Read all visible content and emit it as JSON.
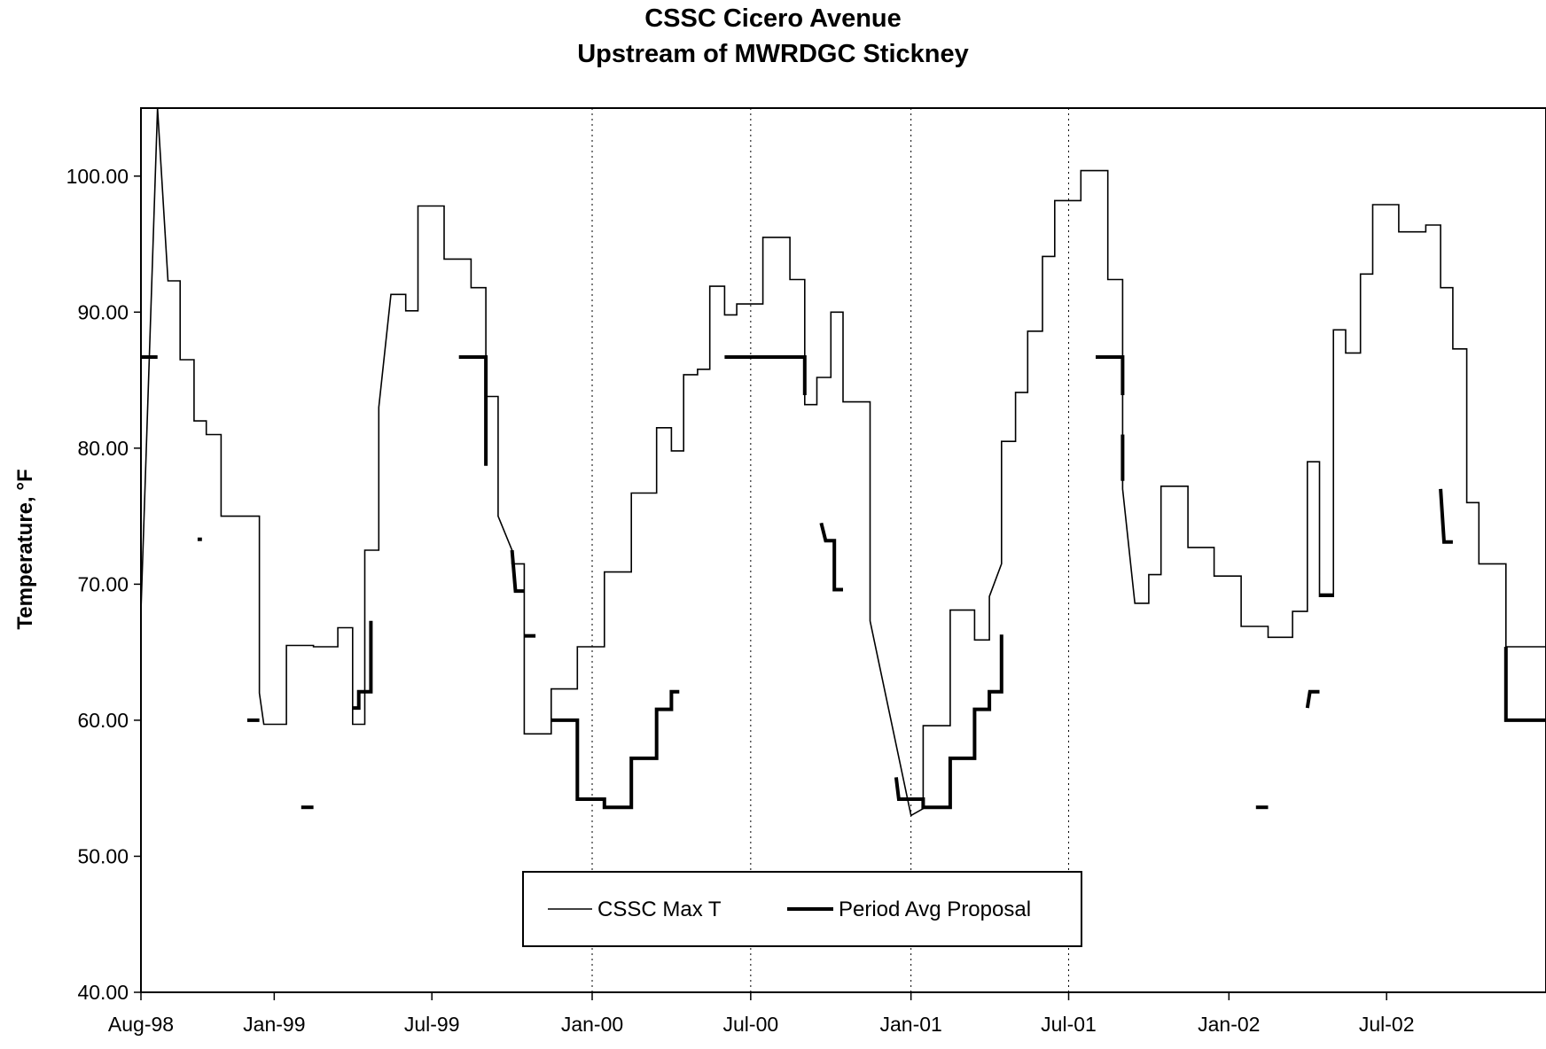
{
  "chart_data": {
    "type": "line",
    "title": "CSSC Cicero Avenue",
    "subtitle": "Upstream of MWRDGC Stickney",
    "xlabel": "",
    "ylabel": "Temperature, °F",
    "ylim": [
      40,
      105
    ],
    "yticks": [
      "40.00",
      "50.00",
      "60.00",
      "70.00",
      "80.00",
      "90.00",
      "100.00"
    ],
    "xlim": [
      "1998-08-01",
      "2002-12-31"
    ],
    "xticks": [
      "Aug-98",
      "Jan-99",
      "Jul-99",
      "Jan-00",
      "Jul-00",
      "Jan-01",
      "Jul-01",
      "Jan-02",
      "Jul-02"
    ],
    "xtick_dates": [
      "1998-08-01",
      "1999-01-01",
      "1999-07-01",
      "2000-01-01",
      "2000-07-01",
      "2001-01-01",
      "2001-07-01",
      "2002-01-01",
      "2002-07-01"
    ],
    "reference_lines": [
      "2000-01-01",
      "2000-07-01",
      "2001-01-01",
      "2001-07-01"
    ],
    "grid": false,
    "legend_position": "bottom-center",
    "series": [
      {
        "name": "CSSC Max T",
        "style": "thin",
        "points": [
          [
            "1998-08-01",
            68
          ],
          [
            "1998-08-20",
            105
          ],
          [
            "1998-09-01",
            92.3
          ],
          [
            "1998-09-15",
            92.3
          ],
          [
            "1998-09-15",
            86.5
          ],
          [
            "1998-10-01",
            86.5
          ],
          [
            "1998-10-01",
            82
          ],
          [
            "1998-10-15",
            82
          ],
          [
            "1998-10-15",
            81
          ],
          [
            "1998-11-01",
            81
          ],
          [
            "1998-11-01",
            75
          ],
          [
            "1998-12-15",
            75
          ],
          [
            "1998-12-15",
            62
          ],
          [
            "1998-12-20",
            59.7
          ],
          [
            "1999-01-15",
            59.7
          ],
          [
            "1999-01-15",
            65.5
          ],
          [
            "1999-02-15",
            65.5
          ],
          [
            "1999-02-15",
            65.4
          ],
          [
            "1999-03-15",
            65.4
          ],
          [
            "1999-03-15",
            66.8
          ],
          [
            "1999-04-01",
            66.8
          ],
          [
            "1999-04-01",
            59.7
          ],
          [
            "1999-04-15",
            59.7
          ],
          [
            "1999-04-15",
            72.5
          ],
          [
            "1999-05-01",
            72.5
          ],
          [
            "1999-05-01",
            83
          ],
          [
            "1999-05-15",
            91.3
          ],
          [
            "1999-06-01",
            91.3
          ],
          [
            "1999-06-01",
            90.1
          ],
          [
            "1999-06-15",
            90.1
          ],
          [
            "1999-06-15",
            97.8
          ],
          [
            "1999-07-15",
            97.8
          ],
          [
            "1999-07-15",
            93.9
          ],
          [
            "1999-08-15",
            93.9
          ],
          [
            "1999-08-15",
            91.8
          ],
          [
            "1999-09-01",
            91.8
          ],
          [
            "1999-09-01",
            83.8
          ],
          [
            "1999-09-15",
            83.8
          ],
          [
            "1999-09-15",
            75
          ],
          [
            "1999-10-01",
            72.5
          ],
          [
            "1999-10-01",
            71.5
          ],
          [
            "1999-10-15",
            71.5
          ],
          [
            "1999-10-15",
            59
          ],
          [
            "1999-11-15",
            59
          ],
          [
            "1999-11-15",
            62.3
          ],
          [
            "1999-12-15",
            62.3
          ],
          [
            "1999-12-15",
            65.4
          ],
          [
            "2000-01-15",
            65.4
          ],
          [
            "2000-01-15",
            70.9
          ],
          [
            "2000-02-15",
            70.9
          ],
          [
            "2000-02-15",
            76.7
          ],
          [
            "2000-03-15",
            76.7
          ],
          [
            "2000-03-15",
            81.5
          ],
          [
            "2000-04-01",
            81.5
          ],
          [
            "2000-04-01",
            79.8
          ],
          [
            "2000-04-15",
            79.8
          ],
          [
            "2000-04-15",
            85.4
          ],
          [
            "2000-05-01",
            85.4
          ],
          [
            "2000-05-01",
            85.8
          ],
          [
            "2000-05-15",
            85.8
          ],
          [
            "2000-05-15",
            91.9
          ],
          [
            "2000-06-01",
            91.9
          ],
          [
            "2000-06-01",
            89.8
          ],
          [
            "2000-06-15",
            89.8
          ],
          [
            "2000-06-15",
            90.6
          ],
          [
            "2000-07-15",
            90.6
          ],
          [
            "2000-07-15",
            95.5
          ],
          [
            "2000-08-15",
            95.5
          ],
          [
            "2000-08-15",
            92.4
          ],
          [
            "2000-09-01",
            92.4
          ],
          [
            "2000-09-01",
            83.2
          ],
          [
            "2000-09-15",
            83.2
          ],
          [
            "2000-09-15",
            85.2
          ],
          [
            "2000-10-01",
            85.2
          ],
          [
            "2000-10-01",
            90
          ],
          [
            "2000-10-15",
            90
          ],
          [
            "2000-10-15",
            83.4
          ],
          [
            "2000-11-15",
            83.4
          ],
          [
            "2000-11-15",
            67.3
          ],
          [
            "2001-01-01",
            53
          ],
          [
            "2001-01-15",
            53.5
          ],
          [
            "2001-01-15",
            59.6
          ],
          [
            "2001-02-15",
            59.6
          ],
          [
            "2001-02-15",
            68.1
          ],
          [
            "2001-03-15",
            68.1
          ],
          [
            "2001-03-15",
            65.9
          ],
          [
            "2001-04-01",
            65.9
          ],
          [
            "2001-04-01",
            69.1
          ],
          [
            "2001-04-15",
            71.5
          ],
          [
            "2001-04-15",
            80.5
          ],
          [
            "2001-05-01",
            80.5
          ],
          [
            "2001-05-01",
            84.1
          ],
          [
            "2001-05-15",
            84.1
          ],
          [
            "2001-05-15",
            88.6
          ],
          [
            "2001-06-01",
            88.6
          ],
          [
            "2001-06-01",
            94.1
          ],
          [
            "2001-06-15",
            94.1
          ],
          [
            "2001-06-15",
            98.2
          ],
          [
            "2001-07-15",
            98.2
          ],
          [
            "2001-07-15",
            100.4
          ],
          [
            "2001-08-15",
            100.4
          ],
          [
            "2001-08-15",
            92.4
          ],
          [
            "2001-09-01",
            92.4
          ],
          [
            "2001-09-01",
            77
          ],
          [
            "2001-09-15",
            68.6
          ],
          [
            "2001-10-01",
            68.6
          ],
          [
            "2001-10-01",
            70.7
          ],
          [
            "2001-10-15",
            70.7
          ],
          [
            "2001-10-15",
            77.2
          ],
          [
            "2001-11-15",
            77.2
          ],
          [
            "2001-11-15",
            72.7
          ],
          [
            "2001-12-15",
            72.7
          ],
          [
            "2001-12-15",
            70.6
          ],
          [
            "2002-01-15",
            70.6
          ],
          [
            "2002-01-15",
            66.9
          ],
          [
            "2002-02-15",
            66.9
          ],
          [
            "2002-02-15",
            66.1
          ],
          [
            "2002-03-15",
            66.1
          ],
          [
            "2002-03-15",
            68
          ],
          [
            "2002-04-01",
            68
          ],
          [
            "2002-04-01",
            79
          ],
          [
            "2002-04-15",
            79
          ],
          [
            "2002-04-15",
            69.1
          ],
          [
            "2002-05-01",
            69.1
          ],
          [
            "2002-05-01",
            88.7
          ],
          [
            "2002-05-15",
            88.7
          ],
          [
            "2002-05-15",
            87
          ],
          [
            "2002-06-01",
            87
          ],
          [
            "2002-06-01",
            92.8
          ],
          [
            "2002-06-15",
            92.8
          ],
          [
            "2002-06-15",
            97.9
          ],
          [
            "2002-07-15",
            97.9
          ],
          [
            "2002-07-15",
            95.9
          ],
          [
            "2002-08-15",
            95.9
          ],
          [
            "2002-08-15",
            96.4
          ],
          [
            "2002-09-01",
            96.4
          ],
          [
            "2002-09-01",
            91.8
          ],
          [
            "2002-09-15",
            91.8
          ],
          [
            "2002-09-15",
            87.3
          ],
          [
            "2002-10-01",
            87.3
          ],
          [
            "2002-10-01",
            76
          ],
          [
            "2002-10-15",
            76
          ],
          [
            "2002-10-15",
            71.5
          ],
          [
            "2002-11-15",
            71.5
          ],
          [
            "2002-11-15",
            65.4
          ],
          [
            "2002-12-31",
            65.4
          ]
        ]
      },
      {
        "name": "Period Avg Proposal",
        "style": "thick",
        "segments": [
          [
            [
              "1998-08-01",
              86.7
            ],
            [
              "1998-08-20",
              86.7
            ]
          ],
          [
            [
              "1998-10-05",
              73.3
            ],
            [
              "1998-10-10",
              73.3
            ]
          ],
          [
            [
              "1998-12-01",
              60
            ],
            [
              "1998-12-15",
              60
            ]
          ],
          [
            [
              "1999-02-01",
              53.6
            ],
            [
              "1999-02-15",
              53.6
            ]
          ],
          [
            [
              "1999-04-01",
              60.9
            ],
            [
              "1999-04-08",
              60.9
            ],
            [
              "1999-04-08",
              62.1
            ],
            [
              "1999-04-22",
              62.1
            ],
            [
              "1999-04-22",
              67.3
            ]
          ],
          [
            [
              "1999-08-01",
              86.7
            ],
            [
              "1999-09-01",
              86.7
            ],
            [
              "1999-09-01",
              78.7
            ]
          ],
          [
            [
              "1999-10-01",
              72.5
            ],
            [
              "1999-10-05",
              69.5
            ],
            [
              "1999-10-15",
              69.5
            ]
          ],
          [
            [
              "1999-10-15",
              66.2
            ],
            [
              "1999-10-28",
              66.2
            ]
          ],
          [
            [
              "1999-11-15",
              60
            ],
            [
              "1999-12-15",
              60
            ],
            [
              "1999-12-15",
              54.2
            ],
            [
              "2000-01-15",
              54.2
            ],
            [
              "2000-01-15",
              53.6
            ],
            [
              "2000-02-15",
              53.6
            ],
            [
              "2000-02-15",
              57.2
            ],
            [
              "2000-03-15",
              57.2
            ],
            [
              "2000-03-15",
              60.8
            ],
            [
              "2000-04-01",
              60.8
            ],
            [
              "2000-04-01",
              62.1
            ],
            [
              "2000-04-10",
              62.1
            ]
          ],
          [
            [
              "2000-06-01",
              86.7
            ],
            [
              "2000-09-01",
              86.7
            ],
            [
              "2000-09-01",
              83.9
            ]
          ],
          [
            [
              "2000-09-20",
              74.5
            ],
            [
              "2000-09-25",
              73.2
            ],
            [
              "2000-10-05",
              73.2
            ],
            [
              "2000-10-05",
              69.6
            ],
            [
              "2000-10-15",
              69.6
            ]
          ],
          [
            [
              "2000-12-15",
              55.8
            ],
            [
              "2000-12-18",
              54.2
            ],
            [
              "2001-01-15",
              54.2
            ],
            [
              "2001-01-15",
              53.6
            ],
            [
              "2001-02-15",
              53.6
            ],
            [
              "2001-02-15",
              57.2
            ],
            [
              "2001-03-15",
              57.2
            ],
            [
              "2001-03-15",
              60.8
            ],
            [
              "2001-04-01",
              60.8
            ],
            [
              "2001-04-01",
              62.1
            ],
            [
              "2001-04-15",
              62.1
            ],
            [
              "2001-04-15",
              66.3
            ]
          ],
          [
            [
              "2001-08-01",
              86.7
            ],
            [
              "2001-09-01",
              86.7
            ],
            [
              "2001-09-01",
              83.9
            ]
          ],
          [
            [
              "2001-09-01",
              81
            ],
            [
              "2001-09-01",
              77.6
            ]
          ],
          [
            [
              "2002-02-01",
              53.6
            ],
            [
              "2002-02-15",
              53.6
            ]
          ],
          [
            [
              "2002-04-01",
              60.9
            ],
            [
              "2002-04-04",
              62.1
            ],
            [
              "2002-04-15",
              62.1
            ]
          ],
          [
            [
              "2002-04-15",
              69.2
            ],
            [
              "2002-05-01",
              69.2
            ]
          ],
          [
            [
              "2002-09-01",
              77
            ],
            [
              "2002-09-05",
              73.1
            ],
            [
              "2002-09-15",
              73.1
            ]
          ],
          [
            [
              "2002-11-15",
              65.4
            ],
            [
              "2002-11-15",
              60
            ],
            [
              "2002-12-31",
              60
            ]
          ]
        ]
      }
    ]
  }
}
